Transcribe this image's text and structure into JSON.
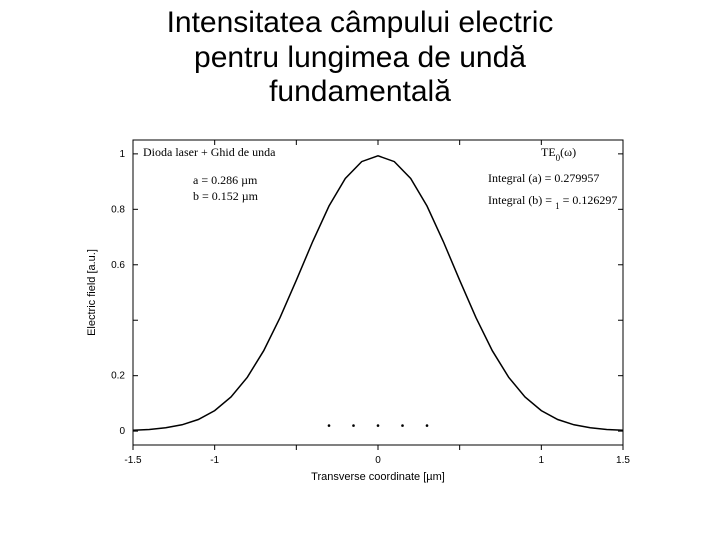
{
  "title_lines": [
    "Intensitatea câmpului electric",
    "pentru lungimea de undă",
    "fundamentală"
  ],
  "chart": {
    "type": "line",
    "background_color": "#ffffff",
    "axis_color": "#000000",
    "curve_color": "#000000",
    "xlabel": "Transverse coordinate [µm]",
    "ylabel": "Electric field [a.u.]",
    "label_fontsize": 11,
    "ticklabel_fontsize": 10,
    "annotation_fontsize": 12,
    "xlim": [
      -1.5,
      1.5
    ],
    "ylim": [
      -0.05,
      1.05
    ],
    "xticks": [
      -1.5,
      -1,
      -0.5,
      0,
      0.5,
      1,
      1.5
    ],
    "xtick_labels": [
      "-1.5",
      "-1",
      "",
      "0",
      "",
      "1",
      "1.5"
    ],
    "yticks": [
      0,
      0.2,
      0.4,
      0.6,
      0.8,
      1
    ],
    "ytick_labels": [
      "0",
      "0.2",
      "",
      "0.6",
      "0.8",
      "1"
    ],
    "series": {
      "x": [
        -1.5,
        -1.4,
        -1.3,
        -1.2,
        -1.1,
        -1.0,
        -0.9,
        -0.8,
        -0.7,
        -0.6,
        -0.5,
        -0.4,
        -0.3,
        -0.2,
        -0.1,
        0.0,
        0.1,
        0.2,
        0.3,
        0.4,
        0.5,
        0.6,
        0.7,
        0.8,
        0.9,
        1.0,
        1.1,
        1.2,
        1.3,
        1.4,
        1.5
      ],
      "y": [
        0.003,
        0.006,
        0.012,
        0.023,
        0.042,
        0.074,
        0.123,
        0.194,
        0.29,
        0.409,
        0.544,
        0.684,
        0.812,
        0.911,
        0.972,
        0.993,
        0.972,
        0.911,
        0.812,
        0.684,
        0.544,
        0.409,
        0.29,
        0.194,
        0.123,
        0.074,
        0.042,
        0.023,
        0.012,
        0.006,
        0.003
      ]
    },
    "markers": {
      "x": [
        -0.3,
        -0.15,
        0.0,
        0.15,
        0.3
      ],
      "y": [
        0.02,
        0.02,
        0.02,
        0.02,
        0.02
      ]
    },
    "annotations": {
      "top_left": "Dioda laser + Ghid de unda",
      "param_a": "a = 0.286 µm",
      "param_b": "b = 0.152 µm",
      "mode": "TE",
      "mode_sub": "0",
      "mode_arg": "(ω)",
      "int_a_label": "Integral (a) = ",
      "int_a_val": "0.279957",
      "int_b_label": "Integral (b) = ",
      "int_b_sub": "1",
      "int_b_val": "0.126297"
    }
  }
}
